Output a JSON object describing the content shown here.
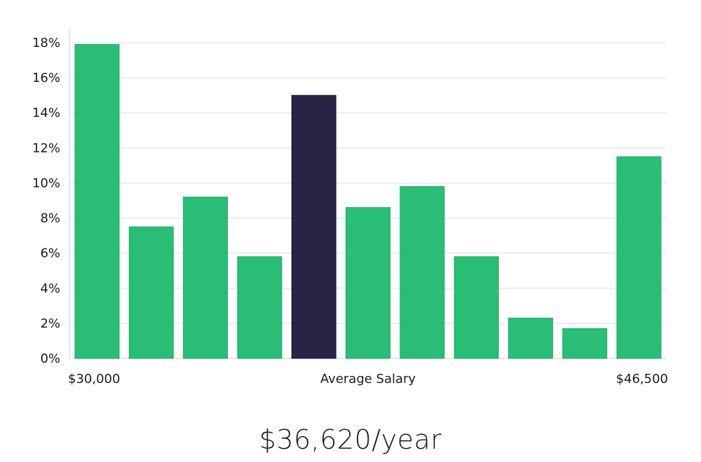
{
  "chart_data": {
    "type": "bar",
    "title": "",
    "ylabel": "",
    "xlabel": "Average Salary",
    "ylim": [
      0,
      18
    ],
    "yticks": [
      0,
      2,
      4,
      6,
      8,
      10,
      12,
      14,
      16,
      18
    ],
    "ytick_suffix": "%",
    "grid": true,
    "x_axis_labels": {
      "left": "$30,000",
      "center": "Average Salary",
      "right": "$46,500"
    },
    "values": [
      17.9,
      7.5,
      9.2,
      5.8,
      15.0,
      8.6,
      9.8,
      5.8,
      2.3,
      1.7,
      11.5
    ],
    "highlight_index": 4,
    "colors": {
      "bar": "#2abd76",
      "highlight": "#272445",
      "grid": "#dcdcdc",
      "axis": "#cccccc"
    }
  },
  "summary": {
    "average_salary": "$36,620/year"
  }
}
